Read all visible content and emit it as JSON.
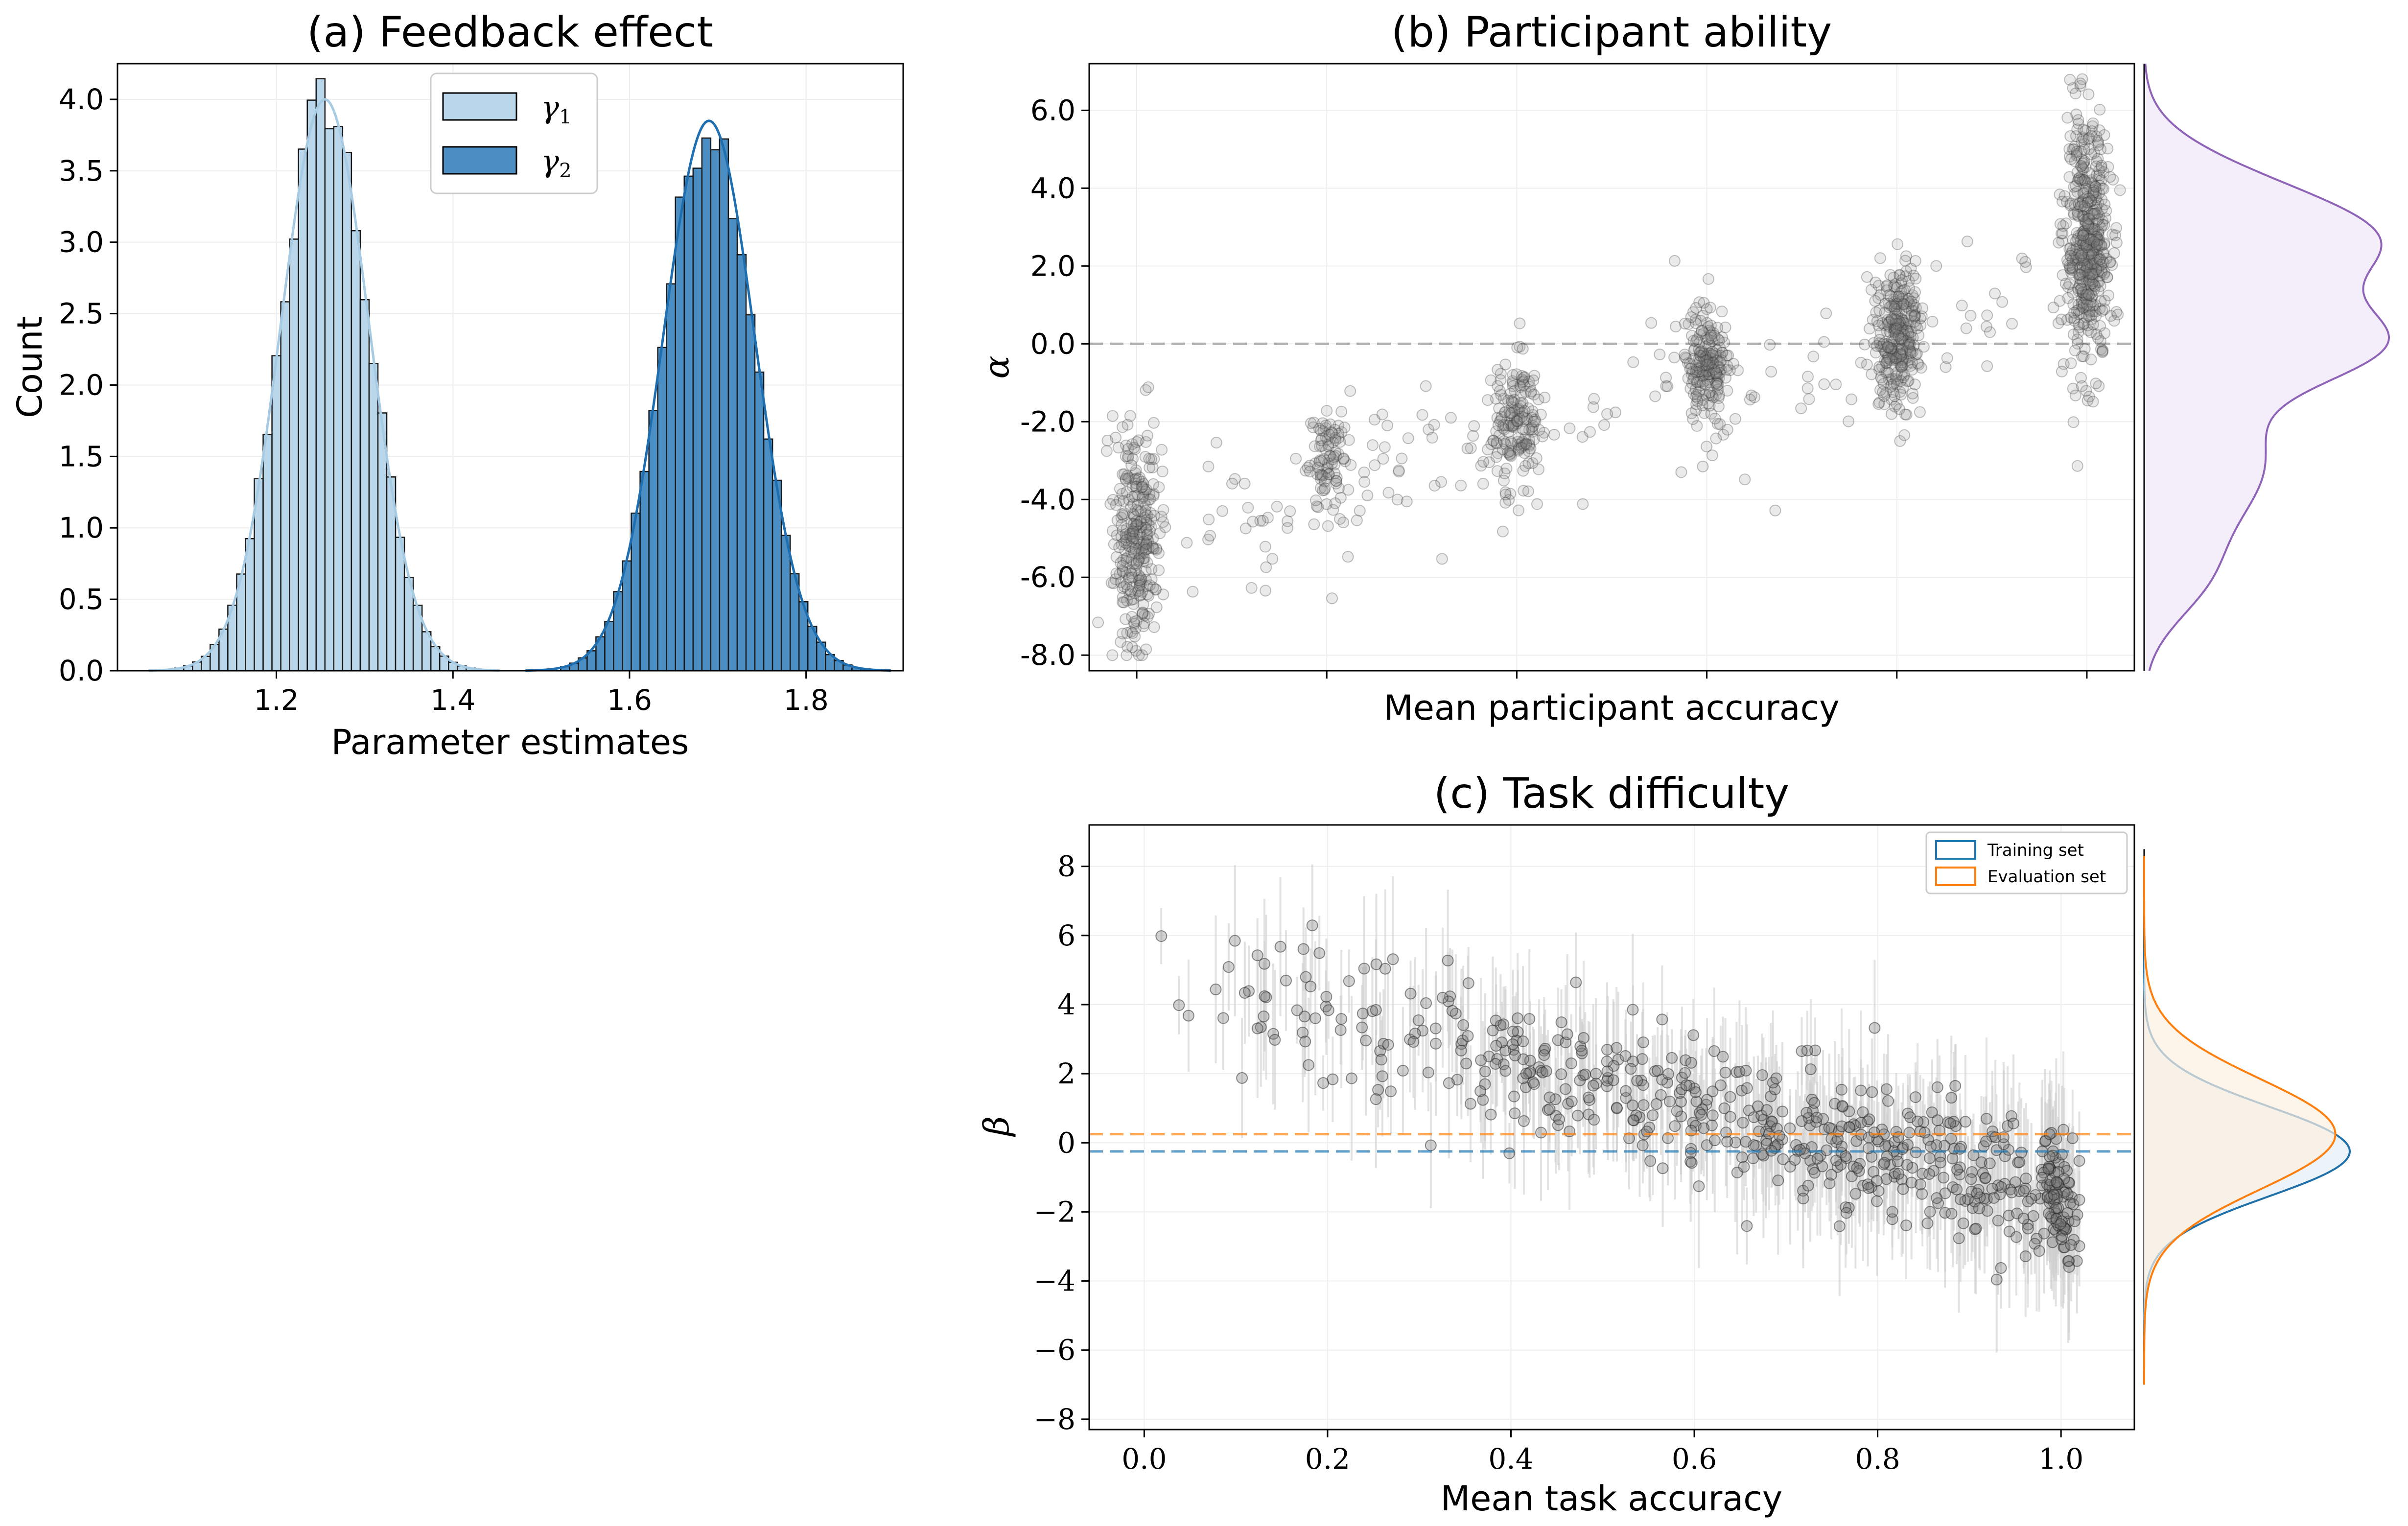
{
  "figure": {
    "panels": {
      "a": {
        "title": "(a) Feedback effect",
        "xlabel": "Parameter estimates",
        "ylabel": "Count"
      },
      "b": {
        "title": "(b) Participant ability",
        "xlabel": "Mean participant accuracy",
        "ylabel": "α"
      },
      "c": {
        "title": "(c) Task difficulty",
        "xlabel": "Mean task accuracy",
        "ylabel": "β"
      }
    }
  },
  "chart_data": [
    {
      "id": "a",
      "type": "bar",
      "title": "(a) Feedback effect",
      "xlabel": "Parameter estimates",
      "ylabel": "Count",
      "xlim": [
        1.02,
        1.91
      ],
      "ylim": [
        0,
        4.25
      ],
      "xticks": [
        "1.2",
        "1.4",
        "1.6",
        "1.8"
      ],
      "yticks": [
        "0.0",
        "0.5",
        "1.0",
        "1.5",
        "2.0",
        "2.5",
        "3.0",
        "3.5",
        "4.0"
      ],
      "legend": {
        "position": "top-center",
        "entries": [
          "γ1",
          "γ2"
        ]
      },
      "grid": true,
      "series": [
        {
          "name": "γ1",
          "color": "#b9d6ea",
          "kde_color": "#a6cbe3",
          "mean": 1.255,
          "sd": 0.05,
          "peak": 4.0,
          "bin_width": 0.01
        },
        {
          "name": "γ2",
          "color": "#4a8ec4",
          "kde_color": "#1f6fb0",
          "mean": 1.69,
          "sd": 0.052,
          "peak": 3.85,
          "bin_width": 0.01
        }
      ]
    },
    {
      "id": "b",
      "type": "scatter",
      "title": "(b) Participant ability",
      "xlabel": "Mean participant accuracy",
      "ylabel": "α",
      "xlim": [
        -0.05,
        1.05
      ],
      "ylim": [
        -8.4,
        7.2
      ],
      "yticks": [
        "-8.0",
        "-6.0",
        "-4.0",
        "-2.0",
        "0.0",
        "2.0",
        "4.0",
        "6.0"
      ],
      "xtick_positions": [
        0.0,
        0.2,
        0.4,
        0.6,
        0.8,
        1.0
      ],
      "xtick_labels_visible": false,
      "hline": 0.0,
      "grid": true,
      "clusters": [
        {
          "x": 0.0,
          "mean": -5.0,
          "sd": 1.4,
          "n": 300
        },
        {
          "x": 0.2,
          "mean": -3.0,
          "sd": 0.8,
          "n": 90
        },
        {
          "x": 0.4,
          "mean": -2.0,
          "sd": 0.8,
          "n": 160
        },
        {
          "x": 0.6,
          "mean": -0.6,
          "sd": 0.7,
          "n": 200
        },
        {
          "x": 0.8,
          "mean": 0.2,
          "sd": 0.9,
          "n": 300
        },
        {
          "x": 1.0,
          "mean": 2.5,
          "sd": 1.5,
          "n": 500
        }
      ],
      "marginal_density": {
        "color": "#8e63b8",
        "fill": "#f3eefa",
        "modes": [
          [
            -6.0,
            0.25
          ],
          [
            -4.0,
            0.3
          ],
          [
            -2.5,
            0.35
          ],
          [
            0.0,
            1.0
          ],
          [
            2.5,
            0.85
          ],
          [
            4.0,
            0.35
          ]
        ]
      }
    },
    {
      "id": "c",
      "type": "scatter",
      "title": "(c) Task difficulty",
      "xlabel": "Mean task accuracy",
      "ylabel": "β",
      "xlim": [
        -0.06,
        1.08
      ],
      "ylim": [
        -8.3,
        9.2
      ],
      "xticks": [
        "0.0",
        "0.2",
        "0.4",
        "0.6",
        "0.8",
        "1.0"
      ],
      "yticks": [
        "−8",
        "−6",
        "−4",
        "−2",
        "0",
        "2",
        "4",
        "6",
        "8"
      ],
      "trend": {
        "start": 5.0,
        "end": -1.6
      },
      "n_points": 650,
      "error_bars": true,
      "legend": {
        "position": "top-right",
        "entries": [
          "Training set",
          "Evaluation set"
        ]
      },
      "hlines": [
        {
          "name": "Training set",
          "y": -0.25,
          "color": "#1f77b4"
        },
        {
          "name": "Evaluation set",
          "y": 0.25,
          "color": "#ff7f0e"
        }
      ],
      "marginal_density": [
        {
          "name": "Training set",
          "color": "#1f6fa8",
          "fill": "#e4eef6",
          "mean": -0.25,
          "sd": 1.3
        },
        {
          "name": "Evaluation set",
          "color": "#ff7f0e",
          "fill": "#fcefe1",
          "mean": 0.25,
          "sd": 1.6
        }
      ],
      "grid": true
    }
  ]
}
